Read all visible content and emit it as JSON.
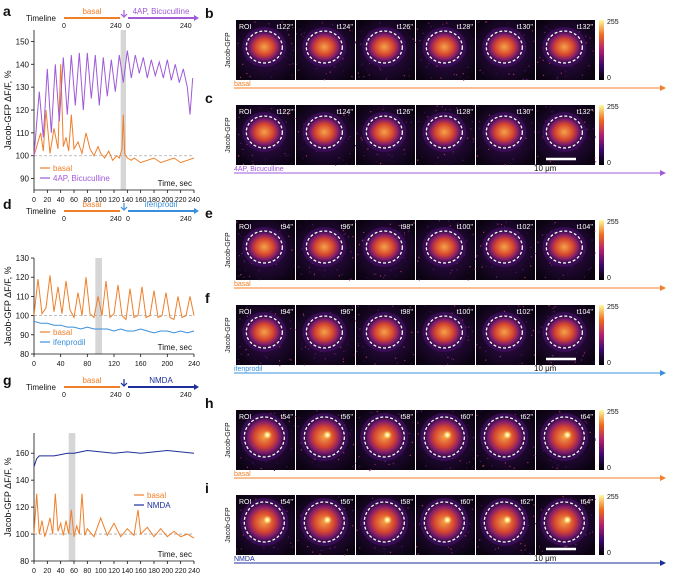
{
  "colors": {
    "basal": "#f07f2a",
    "fourap": "#a05ad8",
    "ifenprodil": "#3a8fdc",
    "nmda": "#1c2f9a",
    "shade": "#d6d6d6",
    "dashed": "#aaaaaa"
  },
  "panels": [
    {
      "letter": "a",
      "timeline_label": "Timeline",
      "basal_label": "basal",
      "drug_label": "4AP, Bicuculline",
      "t0": "0",
      "t240a": "240",
      "t0b": "0",
      "t240b": "240",
      "y_axis_label": "Jacob-GFP ΔF/F, %",
      "x_axis_label": "Time, sec",
      "yticks": [
        "90",
        "100",
        "110",
        "120",
        "130",
        "140",
        "150"
      ],
      "xticks": [
        "0",
        "20",
        "40",
        "60",
        "80",
        "100",
        "120",
        "140",
        "160",
        "180",
        "200",
        "220",
        "240"
      ],
      "legend": [
        "basal",
        "4AP, Bicuculline"
      ]
    },
    {
      "letter": "d",
      "timeline_label": "Timeline",
      "basal_label": "basal",
      "drug_label": "ifenprodil",
      "t0": "0",
      "t240a": "240",
      "t0b": "0",
      "t240b": "240",
      "y_axis_label": "Jacob-GFP ΔF/F, %",
      "x_axis_label": "Time, sec",
      "yticks": [
        "80",
        "90",
        "100",
        "110",
        "120",
        "130"
      ],
      "xticks": [
        "0",
        "40",
        "80",
        "120",
        "160",
        "200",
        "240"
      ],
      "legend": [
        "basal",
        "ifenprodil"
      ]
    },
    {
      "letter": "g",
      "timeline_label": "Timeline",
      "basal_label": "basal",
      "drug_label": "NMDA",
      "t0": "0",
      "t240a": "240",
      "t0b": "0",
      "t240b": "240",
      "y_axis_label": "Jacob-GFP ΔF/F, %",
      "x_axis_label": "Time, sec",
      "yticks": [
        "80",
        "100",
        "120",
        "140",
        "160"
      ],
      "xticks": [
        "0",
        "20",
        "40",
        "60",
        "80",
        "100",
        "120",
        "140",
        "160",
        "180",
        "200",
        "220",
        "240"
      ],
      "legend": [
        "basal",
        "NMDA"
      ]
    }
  ],
  "chart_data": [
    {
      "type": "line",
      "x_axis": "Time, sec",
      "y_axis": "Jacob-GFP ΔF/F, %",
      "ylim": [
        85,
        155
      ],
      "xlim": [
        0,
        240
      ],
      "shaded_x": [
        130,
        138
      ],
      "baseline": 100,
      "series": [
        {
          "name": "basal",
          "x": [
            0,
            10,
            14,
            18,
            24,
            30,
            36,
            40,
            44,
            48,
            52,
            56,
            60,
            66,
            72,
            78,
            84,
            90,
            96,
            100,
            106,
            112,
            118,
            124,
            128,
            132,
            134,
            136,
            140,
            146,
            150,
            160,
            170,
            180,
            190,
            200,
            210,
            220,
            230,
            240
          ],
          "y": [
            100,
            110,
            102,
            120,
            101,
            112,
            103,
            140,
            104,
            108,
            102,
            118,
            103,
            106,
            101,
            110,
            103,
            100,
            104,
            101,
            99,
            102,
            98,
            100,
            99,
            103,
            118,
            101,
            99,
            98,
            99,
            97,
            98,
            99,
            97,
            98,
            99,
            97,
            98,
            99
          ]
        },
        {
          "name": "4AP, Bicuculline",
          "x": [
            0,
            8,
            14,
            20,
            26,
            32,
            38,
            44,
            50,
            56,
            62,
            68,
            74,
            80,
            86,
            92,
            98,
            104,
            110,
            116,
            122,
            128,
            134,
            140,
            146,
            152,
            158,
            164,
            170,
            176,
            182,
            188,
            194,
            200,
            206,
            212,
            218,
            224,
            230,
            234,
            238
          ],
          "y": [
            100,
            128,
            108,
            138,
            110,
            140,
            115,
            143,
            118,
            144,
            122,
            145,
            120,
            145,
            125,
            144,
            122,
            143,
            126,
            142,
            128,
            144,
            132,
            146,
            134,
            144,
            136,
            143,
            134,
            142,
            135,
            141,
            134,
            142,
            133,
            140,
            132,
            138,
            130,
            118,
            134
          ]
        }
      ]
    },
    {
      "type": "line",
      "x_axis": "Time, sec",
      "y_axis": "Jacob-GFP ΔF/F, %",
      "ylim": [
        80,
        130
      ],
      "xlim": [
        0,
        240
      ],
      "shaded_x": [
        92,
        102
      ],
      "baseline": 100,
      "series": [
        {
          "name": "basal",
          "x": [
            0,
            6,
            12,
            18,
            24,
            30,
            36,
            42,
            48,
            54,
            60,
            66,
            72,
            78,
            84,
            90,
            96,
            102,
            108,
            114,
            120,
            126,
            132,
            138,
            144,
            150,
            156,
            162,
            168,
            174,
            180,
            186,
            192,
            198,
            204,
            210,
            216,
            222,
            228,
            234,
            240
          ],
          "y": [
            100,
            119,
            101,
            104,
            121,
            102,
            115,
            101,
            118,
            103,
            99,
            112,
            100,
            120,
            101,
            99,
            110,
            100,
            118,
            99,
            101,
            116,
            100,
            98,
            114,
            99,
            100,
            115,
            99,
            100,
            113,
            99,
            100,
            112,
            99,
            98,
            110,
            99,
            100,
            110,
            100
          ]
        },
        {
          "name": "ifenprodil",
          "x": [
            0,
            10,
            20,
            30,
            40,
            50,
            60,
            70,
            80,
            90,
            100,
            110,
            120,
            130,
            140,
            150,
            160,
            170,
            180,
            190,
            200,
            210,
            220,
            230,
            240
          ],
          "y": [
            97,
            96,
            96,
            95,
            95,
            94,
            94,
            93,
            94,
            93,
            93,
            93,
            92,
            93,
            92,
            92,
            93,
            92,
            91,
            92,
            92,
            91,
            92,
            91,
            92
          ]
        }
      ]
    },
    {
      "type": "line",
      "x_axis": "Time, sec",
      "y_axis": "Jacob-GFP ΔF/F, %",
      "ylim": [
        80,
        175
      ],
      "xlim": [
        0,
        240
      ],
      "shaded_x": [
        52,
        62
      ],
      "baseline": 100,
      "series": [
        {
          "name": "basal",
          "x": [
            0,
            4,
            8,
            12,
            16,
            20,
            24,
            28,
            32,
            36,
            40,
            44,
            48,
            52,
            56,
            60,
            64,
            68,
            72,
            76,
            80,
            90,
            100,
            110,
            120,
            130,
            140,
            150,
            156,
            160,
            170,
            180,
            190,
            200,
            210,
            220,
            230,
            240
          ],
          "y": [
            100,
            130,
            100,
            110,
            98,
            104,
            112,
            100,
            130,
            102,
            108,
            99,
            110,
            100,
            118,
            98,
            106,
            100,
            130,
            99,
            104,
            98,
            112,
            99,
            108,
            98,
            104,
            99,
            118,
            100,
            105,
            98,
            104,
            98,
            102,
            98,
            100,
            97
          ]
        },
        {
          "name": "NMDA",
          "x": [
            0,
            4,
            8,
            12,
            20,
            30,
            40,
            50,
            60,
            70,
            80,
            100,
            120,
            140,
            160,
            180,
            200,
            220,
            240
          ],
          "y": [
            150,
            156,
            158,
            158,
            158,
            158,
            159,
            160,
            160,
            161,
            162,
            161,
            160,
            161,
            160,
            161,
            162,
            161,
            160
          ]
        }
      ]
    }
  ],
  "image_rows": [
    {
      "letter": "b",
      "channel_label": "Jacob-GFP",
      "roi_label": "ROI",
      "times": [
        "t122''",
        "t124''",
        "t126''",
        "t128''",
        "t130''",
        "t132''"
      ],
      "condition": "basal",
      "cbar_max": "255",
      "cbar_min": "0",
      "scale_label": ""
    },
    {
      "letter": "c",
      "channel_label": "Jacob-GFP",
      "roi_label": "ROI",
      "times": [
        "t122''",
        "t124''",
        "t126''",
        "t128''",
        "t130''",
        "t132''"
      ],
      "condition": "4AP, Bicuculline",
      "cbar_max": "255",
      "cbar_min": "0",
      "scale_label": "10 μm"
    },
    {
      "letter": "e",
      "channel_label": "Jacob-GFP",
      "roi_label": "ROI",
      "times": [
        "t94''",
        "t96''",
        "t98''",
        "t100''",
        "t102''",
        "t104''"
      ],
      "condition": "basal",
      "cbar_max": "255",
      "cbar_min": "0",
      "scale_label": ""
    },
    {
      "letter": "f",
      "channel_label": "Jacob-GFP",
      "roi_label": "ROI",
      "times": [
        "t94''",
        "t96''",
        "t98''",
        "t100''",
        "t102''",
        "t104''"
      ],
      "condition": "ifenprodil",
      "cbar_max": "255",
      "cbar_min": "0",
      "scale_label": "10 μm"
    },
    {
      "letter": "h",
      "channel_label": "Jacob-GFP",
      "roi_label": "ROI",
      "times": [
        "t54''",
        "t56''",
        "t58''",
        "t60''",
        "t62''",
        "t64''"
      ],
      "condition": "basal",
      "cbar_max": "255",
      "cbar_min": "0",
      "scale_label": ""
    },
    {
      "letter": "i",
      "channel_label": "Jacob-GFP",
      "roi_label": "ROI",
      "times": [
        "t54''",
        "t56''",
        "t58''",
        "t60''",
        "t62''",
        "t64''"
      ],
      "condition": "NMDA",
      "cbar_max": "255",
      "cbar_min": "0",
      "scale_label": "10 μm"
    }
  ]
}
